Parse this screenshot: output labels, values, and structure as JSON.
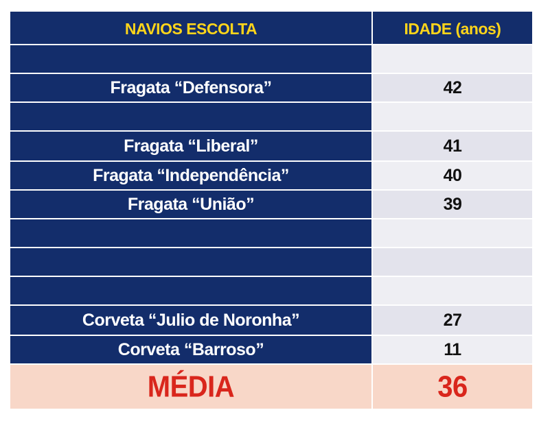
{
  "table": {
    "headers": {
      "ship": "NAVIOS ESCOLTA",
      "age": "IDADE (anos)"
    },
    "rows": [
      {
        "ship": "",
        "age": ""
      },
      {
        "ship": "Fragata “Defensora”",
        "age": "42"
      },
      {
        "ship": "",
        "age": ""
      },
      {
        "ship": "Fragata “Liberal”",
        "age": "41"
      },
      {
        "ship": "Fragata “Independência”",
        "age": "40"
      },
      {
        "ship": "Fragata “União”",
        "age": "39"
      },
      {
        "ship": "",
        "age": ""
      },
      {
        "ship": "",
        "age": ""
      },
      {
        "ship": "",
        "age": ""
      },
      {
        "ship": "Corveta “Julio de Noronha”",
        "age": "27"
      },
      {
        "ship": "Corveta “Barroso”",
        "age": "11"
      }
    ],
    "average": {
      "label": "MÉDIA",
      "value": "36"
    }
  },
  "colors": {
    "header_bg": "#132d6b",
    "header_text": "#ffd51a",
    "name_bg": "#132d6b",
    "name_text": "#ffffff",
    "age_bg": "#e3e3ec",
    "average_bg": "#f8d7c8",
    "average_text": "#d9261c"
  }
}
